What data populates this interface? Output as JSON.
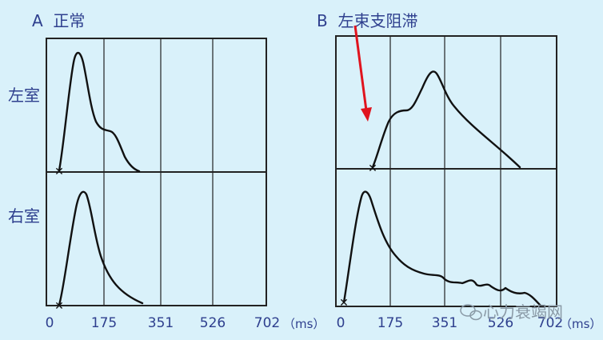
{
  "colors": {
    "background": "#d9f1fa",
    "label": "#2e3f8e",
    "grid": "#222222",
    "curve": "#111111",
    "arrow": "#e0141e",
    "watermark": "#8a9aa6"
  },
  "panel_a": {
    "letter": "A",
    "title": "正常"
  },
  "panel_b": {
    "letter": "B",
    "title": "左束支阻滞"
  },
  "row_labels": {
    "left_ventricle": "左室",
    "right_ventricle": "右室"
  },
  "x_axis": {
    "ticks": [
      "0",
      "175",
      "351",
      "526",
      "702"
    ],
    "unit": "（ms）"
  },
  "watermark": {
    "text": "心力衰竭网",
    "icon": "wechat-icon"
  }
}
